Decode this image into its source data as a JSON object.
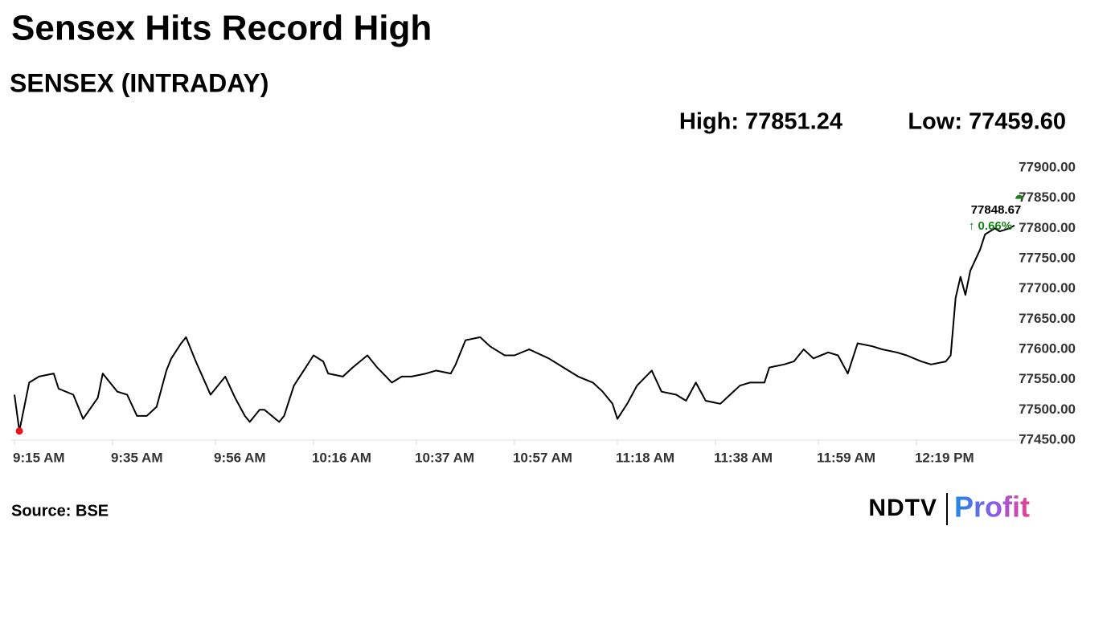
{
  "chart_data": {
    "type": "line",
    "title": "Sensex Hits Record High",
    "subtitle": "SENSEX (INTRADAY)",
    "high": "High: 77851.24",
    "low": "Low: 77459.60",
    "last_value": 77848.67,
    "change": "↑ 0.66%",
    "source": "Source: BSE",
    "logo": {
      "brand": "NDTV",
      "product": "Profit"
    },
    "color": "#000000",
    "low_color": "#e8141c",
    "last_color": "#1a7f1a",
    "xlim": [
      "9:15 AM",
      "12:40 PM"
    ],
    "xticks": [
      "9:15 AM",
      "9:35 AM",
      "9:56 AM",
      "10:16 AM",
      "10:37 AM",
      "10:57 AM",
      "11:18 AM",
      "11:38 AM",
      "11:59 AM",
      "12:19 PM"
    ],
    "ylim": [
      77450,
      77900
    ],
    "yticks": [
      {
        "value": 77450,
        "label": "77450.00"
      },
      {
        "value": 77500,
        "label": "77500.00"
      },
      {
        "value": 77550,
        "label": "77550.00"
      },
      {
        "value": 77600,
        "label": "77600.00"
      },
      {
        "value": 77650,
        "label": "77650.00"
      },
      {
        "value": 77700,
        "label": "77700.00"
      },
      {
        "value": 77750,
        "label": "77750.00"
      },
      {
        "value": 77800,
        "label": "77800.00"
      },
      {
        "value": 77850,
        "label": "77850.00"
      },
      {
        "value": 77900,
        "label": "77900.00"
      }
    ],
    "x": [
      "9:15 AM",
      "9:16 AM",
      "9:18 AM",
      "9:20 AM",
      "9:23 AM",
      "9:24 AM",
      "9:27 AM",
      "9:29 AM",
      "9:32 AM",
      "9:33 AM",
      "9:36 AM",
      "9:38 AM",
      "9:40 AM",
      "9:42 AM",
      "9:44 AM",
      "9:46 AM",
      "9:47 AM",
      "9:49 AM",
      "9:50 AM",
      "9:52 AM",
      "9:55 AM",
      "9:56 AM",
      "9:58 AM",
      "10:00 AM",
      "10:02 AM",
      "10:03 AM",
      "10:05 AM",
      "10:06 AM",
      "10:09 AM",
      "10:10 AM",
      "10:12 AM",
      "10:14 AM",
      "10:16 AM",
      "10:18 AM",
      "10:19 AM",
      "10:22 AM",
      "10:24 AM",
      "10:27 AM",
      "10:29 AM",
      "10:32 AM",
      "10:34 AM",
      "10:36 AM",
      "10:39 AM",
      "10:41 AM",
      "10:44 AM",
      "10:45 AM",
      "10:47 AM",
      "10:50 AM",
      "10:52 AM",
      "10:55 AM",
      "10:57 AM",
      "11:00 AM",
      "11:04 AM",
      "11:07 AM",
      "11:10 AM",
      "11:13 AM",
      "11:15 AM",
      "11:17 AM",
      "11:18 AM",
      "11:20 AM",
      "11:22 AM",
      "11:25 AM",
      "11:27 AM",
      "11:30 AM",
      "11:32 AM",
      "11:34 AM",
      "11:36 AM",
      "11:39 AM",
      "11:41 AM",
      "11:43 AM",
      "11:45 AM",
      "11:48 AM",
      "11:49 AM",
      "11:52 AM",
      "11:54 AM",
      "11:56 AM",
      "11:58 AM",
      "12:01 PM",
      "12:03 PM",
      "12:05 PM",
      "12:07 PM",
      "12:10 PM",
      "12:12 PM",
      "12:15 PM",
      "12:17 PM",
      "12:20 PM",
      "12:22 PM",
      "12:25 PM",
      "12:26 PM",
      "12:27 PM",
      "12:28 PM",
      "12:29 PM",
      "12:30 PM",
      "12:32 PM",
      "12:33 PM",
      "12:35 PM",
      "12:36 PM",
      "12:38 PM",
      "12:39 PM"
    ],
    "values": [
      77525,
      77465,
      77545,
      77555,
      77560,
      77535,
      77525,
      77485,
      77520,
      77560,
      77530,
      77525,
      77490,
      77490,
      77505,
      77565,
      77585,
      77610,
      77620,
      77580,
      77525,
      77535,
      77555,
      77520,
      77490,
      77480,
      77500,
      77500,
      77480,
      77490,
      77540,
      77565,
      77590,
      77580,
      77560,
      77555,
      77570,
      77590,
      77570,
      77545,
      77555,
      77555,
      77560,
      77565,
      77560,
      77575,
      77615,
      77620,
      77605,
      77590,
      77590,
      77600,
      77585,
      77570,
      77555,
      77545,
      77530,
      77510,
      77485,
      77510,
      77540,
      77565,
      77530,
      77525,
      77515,
      77545,
      77515,
      77510,
      77525,
      77540,
      77545,
      77545,
      77570,
      77575,
      77580,
      77600,
      77585,
      77595,
      77590,
      77560,
      77610,
      77605,
      77600,
      77595,
      77590,
      77580,
      77575,
      77580,
      77590,
      77685,
      77720,
      77690,
      77730,
      77765,
      77790,
      77800,
      77795,
      77800,
      77805
    ]
  }
}
